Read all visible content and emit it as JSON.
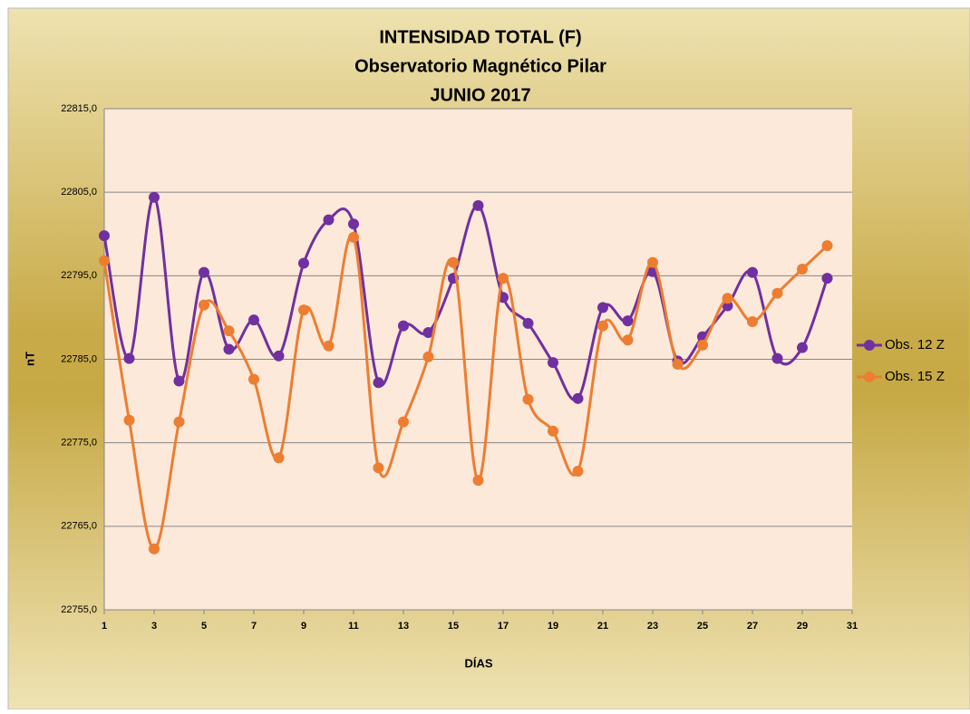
{
  "chart_data": {
    "type": "line",
    "title": [
      "INTENSIDAD TOTAL (F)",
      "Observatorio Magnético Pilar",
      "JUNIO 2017"
    ],
    "x_label": "DÍAS",
    "y_label": "nT",
    "x": [
      1,
      2,
      3,
      4,
      5,
      6,
      7,
      8,
      9,
      10,
      11,
      12,
      13,
      14,
      15,
      16,
      17,
      18,
      19,
      20,
      21,
      22,
      23,
      24,
      25,
      26,
      27,
      28,
      29,
      30
    ],
    "series": [
      {
        "name": "Obs. 12 Z",
        "color": "#7030a0",
        "values": [
          22799.8,
          22785.1,
          22804.4,
          22782.4,
          22795.4,
          22786.2,
          22789.7,
          22785.4,
          22796.5,
          22801.7,
          22801.2,
          22782.2,
          22789.0,
          22788.2,
          22794.7,
          22803.4,
          22792.4,
          22789.3,
          22784.6,
          22780.3,
          22791.2,
          22789.6,
          22795.5,
          22784.8,
          22787.7,
          22791.4,
          22795.4,
          22785.1,
          22786.4,
          22794.7
        ]
      },
      {
        "name": "Obs. 15 Z",
        "color": "#ed7d31",
        "values": [
          22796.8,
          22777.7,
          22762.3,
          22777.5,
          22791.5,
          22788.4,
          22782.6,
          22773.2,
          22790.9,
          22786.6,
          22799.6,
          22772.0,
          22777.5,
          22785.3,
          22796.6,
          22770.5,
          22794.7,
          22780.2,
          22776.4,
          22771.6,
          22789.0,
          22787.3,
          22796.6,
          22784.4,
          22786.7,
          22792.3,
          22789.5,
          22792.9,
          22795.8,
          22798.6
        ]
      }
    ],
    "xlim": [
      1,
      31
    ],
    "xticks": [
      1,
      3,
      5,
      7,
      9,
      11,
      13,
      15,
      17,
      19,
      21,
      23,
      25,
      27,
      29,
      31
    ],
    "ylim": [
      22755,
      22815
    ],
    "yticks": [
      {
        "value": 22755,
        "label": "22755,0"
      },
      {
        "value": 22765,
        "label": "22765,0"
      },
      {
        "value": 22775,
        "label": "22775,0"
      },
      {
        "value": 22785,
        "label": "22785,0"
      },
      {
        "value": 22795,
        "label": "22795,0"
      },
      {
        "value": 22805,
        "label": "22805,0"
      },
      {
        "value": 22815,
        "label": "22815,0"
      }
    ],
    "grid": true,
    "smooth": true,
    "legend": "right"
  }
}
